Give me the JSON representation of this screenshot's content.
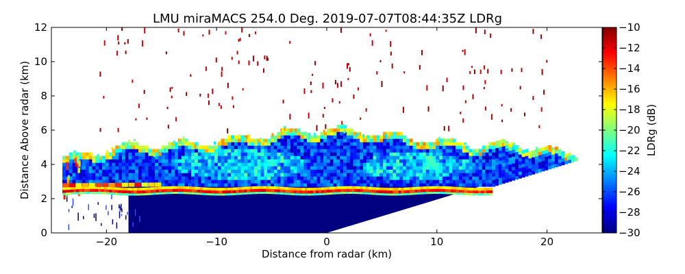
{
  "chart_data": {
    "type": "heatmap",
    "title": "LMU miraMACS 254.0 Deg. 2019-07-07T08:44:35Z  LDRg",
    "xlabel": "Distance from radar (km)",
    "ylabel": "Distance Above radar  (km)",
    "xlim": [
      -25,
      25
    ],
    "ylim": [
      0,
      12
    ],
    "x_ticks": [
      -20,
      -10,
      0,
      10,
      20
    ],
    "x_tick_labels": [
      "−20",
      "−10",
      "0",
      "10",
      "20"
    ],
    "y_ticks": [
      0,
      2,
      4,
      6,
      8,
      10,
      12
    ],
    "y_tick_labels": [
      "0",
      "2",
      "4",
      "6",
      "8",
      "10",
      "12"
    ],
    "colorbar": {
      "label": "LDRg (dB)",
      "range": [
        -30,
        -10
      ],
      "ticks": [
        -30,
        -28,
        -26,
        -24,
        -22,
        -20,
        -18,
        -16,
        -14,
        -12,
        -10
      ],
      "tick_labels": [
        "−30",
        "−28",
        "−26",
        "−24",
        "−22",
        "−20",
        "−18",
        "−16",
        "−14",
        "−12",
        "−10"
      ],
      "colormap": "jet"
    },
    "features": [
      {
        "name": "melting-layer",
        "height_km": 2.4,
        "x_range_km": [
          -24,
          15
        ],
        "ldr_db": -13
      },
      {
        "name": "precipitation-below-melting-layer",
        "height_range_km": [
          0,
          2.3
        ],
        "ldr_db": -30
      },
      {
        "name": "stratiform-cloud",
        "height_range_km": [
          2.5,
          6.0
        ],
        "x_range_km": [
          -24,
          24
        ],
        "ldr_db": -27
      },
      {
        "name": "cloud-top-edge",
        "height_km": 5.9,
        "ldr_db": -19
      },
      {
        "name": "sparse-echoes-aloft",
        "height_range_km": [
          6,
          12
        ],
        "ldr_db": -10
      }
    ]
  }
}
